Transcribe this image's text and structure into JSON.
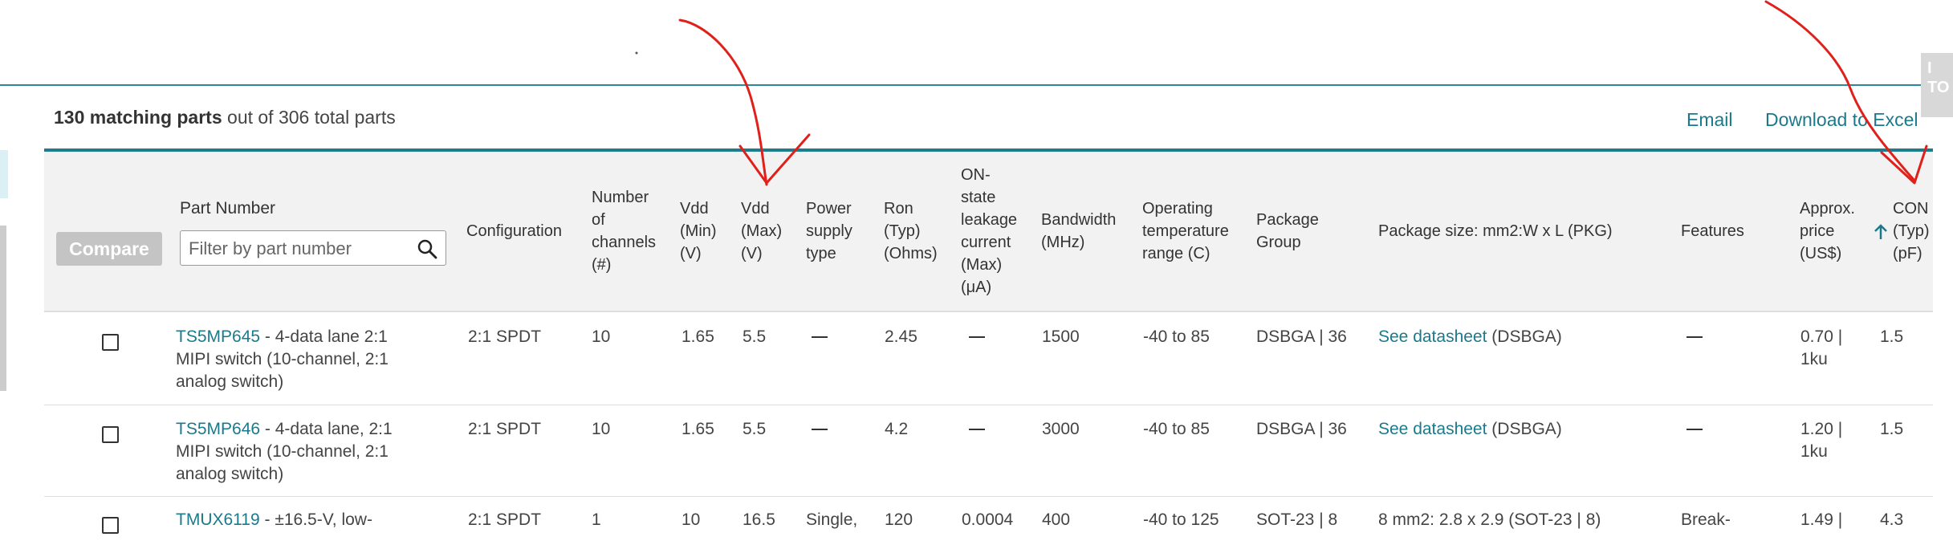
{
  "summary": {
    "count_bold": "130 matching parts",
    "rest": " out of 306 total parts"
  },
  "links": {
    "email": "Email",
    "download": "Download to Excel"
  },
  "side_tab": {
    "line1": "I",
    "line2": "TO"
  },
  "compare_label": "Compare",
  "filter": {
    "label": "Part Number",
    "placeholder": "Filter by part number"
  },
  "headers": {
    "configuration": "Configuration",
    "channels": [
      "Number",
      "of",
      "channels",
      "(#)"
    ],
    "vdd_min": [
      "Vdd",
      "(Min)",
      "(V)"
    ],
    "vdd_max": [
      "Vdd",
      "(Max)",
      "(V)"
    ],
    "power": [
      "Power",
      "supply",
      "type"
    ],
    "ron": [
      "Ron",
      "(Typ)",
      "(Ohms)"
    ],
    "leakage": [
      "ON-",
      "state",
      "leakage",
      "current",
      "(Max)",
      "(μA)"
    ],
    "bandwidth": [
      "Bandwidth",
      "(MHz)"
    ],
    "temp": [
      "Operating",
      "temperature",
      "range (C)"
    ],
    "package_group": [
      "Package",
      "Group"
    ],
    "package_size": "Package size: mm2:W x L (PKG)",
    "features": "Features",
    "price": [
      "Approx.",
      "price",
      "(US$)"
    ],
    "con": [
      "CON",
      "(Typ)",
      "(pF)"
    ]
  },
  "rows": [
    {
      "part": "TS5MP645",
      "desc": [
        "- 4-data lane 2:1",
        "MIPI switch (10-channel, 2:1",
        "analog switch)"
      ],
      "config": "2:1 SPDT",
      "channels": "10",
      "vdd_min": "1.65",
      "vdd_max": "5.5",
      "ron": "2.45",
      "bandwidth": "1500",
      "temp": "-40 to 85",
      "package_group": "DSBGA | 36",
      "pkg_link": "See datasheet",
      "pkg_rest": " (DSBGA)",
      "price": [
        "0.70 |",
        "1ku"
      ],
      "con": "1.5"
    },
    {
      "part": "TS5MP646",
      "desc": [
        "- 4-data lane, 2:1",
        "MIPI switch (10-channel, 2:1",
        "analog switch)"
      ],
      "config": "2:1 SPDT",
      "channels": "10",
      "vdd_min": "1.65",
      "vdd_max": "5.5",
      "ron": "4.2",
      "bandwidth": "3000",
      "temp": "-40 to 85",
      "package_group": "DSBGA | 36",
      "pkg_link": "See datasheet",
      "pkg_rest": " (DSBGA)",
      "price": [
        "1.20 |",
        "1ku"
      ],
      "con": "1.5"
    },
    {
      "part": "TMUX6119",
      "desc": [
        "- ±16.5-V, low-"
      ],
      "config": "2:1 SPDT",
      "channels": "1",
      "vdd_min": "10",
      "vdd_max": "16.5",
      "power": "Single,",
      "ron": "120",
      "leakage": "0.0004",
      "bandwidth": "400",
      "temp": "-40 to 125",
      "package_group": "SOT-23 | 8",
      "pkg_text": "8 mm2: 2.8 x 2.9 (SOT-23 | 8)",
      "features": "Break-",
      "price": [
        "1.49 |"
      ],
      "con": "4.3"
    }
  ],
  "colors": {
    "accent": "#1a7a8c",
    "header_bar": "#1d7d8f",
    "annotation": "#e0201b"
  }
}
